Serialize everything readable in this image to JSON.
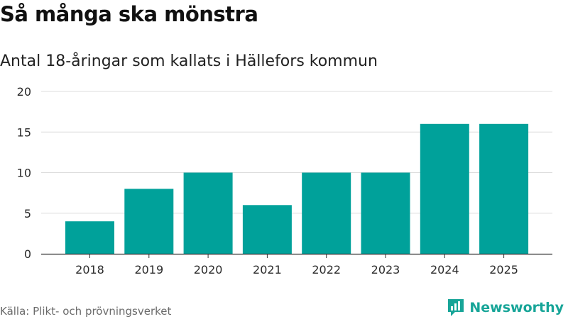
{
  "header": {
    "title": "Så många ska mönstra",
    "subtitle": "Antal 18-åringar som kallats i Hällefors kommun"
  },
  "footer": {
    "source": "Källa: Plikt- och prövningsverket",
    "brand": "Newsworthy",
    "brand_icon": "bar-chart-speech-bubble-icon"
  },
  "colors": {
    "bar": "#00a19a",
    "grid": "#dcdcdc",
    "axis": "#333333",
    "brand": "#17a598"
  },
  "chart_data": {
    "type": "bar",
    "categories": [
      "2018",
      "2019",
      "2020",
      "2021",
      "2022",
      "2023",
      "2024",
      "2025"
    ],
    "values": [
      4,
      8,
      10,
      6,
      10,
      10,
      16,
      16
    ],
    "title": "Så många ska mönstra",
    "subtitle": "Antal 18-åringar som kallats i Hällefors kommun",
    "xlabel": "",
    "ylabel": "",
    "ylim": [
      0,
      20
    ],
    "yticks": [
      0,
      5,
      10,
      15,
      20
    ],
    "grid": true,
    "legend": "none"
  }
}
